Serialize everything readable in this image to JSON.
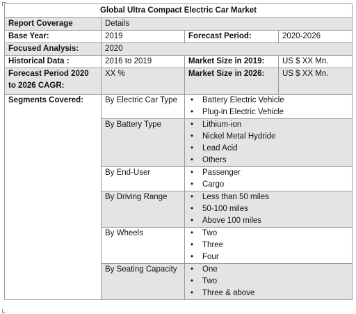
{
  "title": "Global Ultra Compact Electric Car Market",
  "header": {
    "col1": "Report Coverage",
    "col2": "Details"
  },
  "base_year": {
    "label": "Base Year:",
    "value": "2019",
    "forecast_label": "Forecast Period:",
    "forecast_value": "2020-2026"
  },
  "focused": {
    "label": "Focused Analysis:",
    "value": "2020"
  },
  "historical": {
    "label": "Historical Data :",
    "value": "2016 to 2019",
    "size_label": "Market Size in 2019:",
    "size_value": "US $ XX Mn."
  },
  "cagr": {
    "label": "Forecast Period 2020 to 2026 CAGR:",
    "value": "XX %",
    "size_label": "Market Size in 2026:",
    "size_value": "US $ XX Mn."
  },
  "segments_label": "Segments Covered:",
  "bullet": "•",
  "segments": [
    {
      "name": "By Electric Car Type",
      "items": [
        "Battery Electric Vehicle",
        "Plug-in Electric Vehicle"
      ]
    },
    {
      "name": "By Battery Type",
      "items": [
        "Lithium-ion",
        "Nickel Metal Hydride",
        "Lead Acid",
        "Others"
      ]
    },
    {
      "name": "By End-User",
      "items": [
        "Passenger",
        "Cargo"
      ]
    },
    {
      "name": "By Driving Range",
      "items": [
        "Less than 50 miles",
        "50-100 miles",
        "Above 100 miles"
      ]
    },
    {
      "name": "By Wheels",
      "items": [
        "Two",
        "Three",
        "Four"
      ]
    },
    {
      "name": "By Seating Capacity",
      "items": [
        "One",
        "Two",
        "Three & above"
      ]
    }
  ]
}
